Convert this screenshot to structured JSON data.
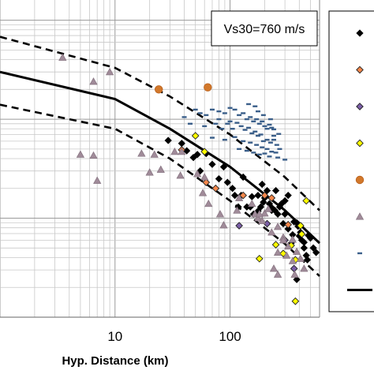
{
  "chart_data": {
    "type": "scatter",
    "title": "",
    "xlabel": "Hyp. Distance (km)",
    "ylabel": "",
    "x_scale": "log",
    "y_scale": "log",
    "xlim": [
      1,
      600
    ],
    "ylim": [
      0.001,
      1.6
    ],
    "grid": true,
    "x_tick_labels": [
      {
        "value": 10,
        "label": "10"
      },
      {
        "value": 100,
        "label": "100"
      }
    ],
    "annotations": [
      {
        "text": "Vs30=760 m/s",
        "position": "top-right"
      }
    ],
    "legend": {
      "position": "right",
      "entries": [
        {
          "marker": "diamond",
          "color": "#000000",
          "label": ""
        },
        {
          "marker": "diamond",
          "color": "#f4874b",
          "label": ""
        },
        {
          "marker": "diamond",
          "color": "#7b5ea7",
          "label": ""
        },
        {
          "marker": "diamond",
          "color": "#ffff00",
          "label": ""
        },
        {
          "marker": "circle",
          "color": "#d2782b",
          "label": ""
        },
        {
          "marker": "triangle",
          "color": "#a08b99",
          "label": ""
        },
        {
          "marker": "dash",
          "color": "#3b5f8a",
          "label": ""
        },
        {
          "marker": "line",
          "color": "#000000",
          "label": ""
        }
      ]
    },
    "lines": [
      {
        "style": "solid",
        "color": "#000000",
        "x": [
          1,
          10,
          30,
          100,
          300,
          600
        ],
        "y": [
          0.3,
          0.16,
          0.08,
          0.033,
          0.012,
          0.0056
        ]
      },
      {
        "style": "dashed",
        "color": "#000000",
        "x": [
          1,
          10,
          30,
          100,
          300,
          600
        ],
        "y": [
          0.68,
          0.33,
          0.17,
          0.07,
          0.026,
          0.012
        ]
      },
      {
        "style": "dashed",
        "color": "#000000",
        "x": [
          1,
          10,
          30,
          100,
          300,
          600
        ],
        "y": [
          0.14,
          0.08,
          0.04,
          0.015,
          0.0055,
          0.0026
        ]
      }
    ],
    "series": [
      {
        "marker": "diamond",
        "color": "#000000",
        "points": [
          [
            29,
            0.061
          ],
          [
            38,
            0.057
          ],
          [
            42,
            0.048
          ],
          [
            48,
            0.041
          ],
          [
            52,
            0.044
          ],
          [
            55,
            0.03
          ],
          [
            62,
            0.045
          ],
          [
            70,
            0.035
          ],
          [
            80,
            0.025
          ],
          [
            88,
            0.033
          ],
          [
            95,
            0.023
          ],
          [
            105,
            0.02
          ],
          [
            110,
            0.017
          ],
          [
            118,
            0.013
          ],
          [
            125,
            0.017
          ],
          [
            130,
            0.026
          ],
          [
            140,
            0.013
          ],
          [
            150,
            0.013
          ],
          [
            160,
            0.011
          ],
          [
            175,
            0.017
          ],
          [
            185,
            0.013
          ],
          [
            190,
            0.022
          ],
          [
            200,
            0.016
          ],
          [
            210,
            0.019
          ],
          [
            220,
            0.014
          ],
          [
            230,
            0.012
          ],
          [
            245,
            0.012
          ],
          [
            260,
            0.011
          ],
          [
            280,
            0.014
          ],
          [
            300,
            0.011
          ],
          [
            320,
            0.0078
          ],
          [
            350,
            0.0068
          ],
          [
            380,
            0.009
          ],
          [
            400,
            0.0066
          ],
          [
            420,
            0.006
          ],
          [
            440,
            0.005
          ],
          [
            460,
            0.0042
          ],
          [
            480,
            0.0067
          ],
          [
            500,
            0.0063
          ],
          [
            290,
            0.0088
          ],
          [
            360,
            0.0092
          ],
          [
            410,
            0.0072
          ],
          [
            470,
            0.0038
          ],
          [
            530,
            0.005
          ],
          [
            560,
            0.0045
          ],
          [
            340,
            0.0056
          ],
          [
            390,
            0.0083
          ],
          [
            270,
            0.013
          ],
          [
            230,
            0.0128
          ],
          [
            195,
            0.0145
          ],
          [
            175,
            0.0118
          ],
          [
            155,
            0.0165
          ],
          [
            380,
            0.0024
          ],
          [
            250,
            0.019
          ],
          [
            300,
            0.015
          ],
          [
            320,
            0.017
          ],
          [
            440,
            0.0057
          ]
        ]
      },
      {
        "marker": "diamond",
        "color": "#f4874b",
        "points": [
          [
            38,
            0.049
          ],
          [
            62,
            0.023
          ],
          [
            75,
            0.02
          ],
          [
            130,
            0.017
          ],
          [
            200,
            0.017
          ],
          [
            230,
            0.016
          ],
          [
            320,
            0.0086
          ]
        ]
      },
      {
        "marker": "diamond",
        "color": "#7b5ea7",
        "points": [
          [
            120,
            0.0084
          ],
          [
            210,
            0.0088
          ],
          [
            300,
            0.006
          ],
          [
            360,
            0.0031
          ]
        ]
      },
      {
        "marker": "diamond",
        "color": "#ffff00",
        "points": [
          [
            50,
            0.068
          ],
          [
            60,
            0.047
          ],
          [
            290,
            0.0044
          ],
          [
            250,
            0.0054
          ],
          [
            340,
            0.0053
          ],
          [
            370,
            0.0038
          ],
          [
            410,
            0.0084
          ],
          [
            420,
            0.0069
          ],
          [
            460,
            0.015
          ],
          [
            370,
            0.00145
          ],
          [
            180,
            0.0039
          ]
        ]
      },
      {
        "marker": "circle",
        "color": "#d2782b",
        "points": [
          [
            24,
            0.2
          ],
          [
            64,
            0.21
          ]
        ]
      },
      {
        "marker": "triangle",
        "color": "#a08b99",
        "points": [
          [
            3.5,
            0.42
          ],
          [
            6.5,
            0.24
          ],
          [
            9,
            0.3
          ],
          [
            5,
            0.044
          ],
          [
            6.5,
            0.043
          ],
          [
            7,
            0.024
          ],
          [
            17,
            0.045
          ],
          [
            20,
            0.029
          ],
          [
            22,
            0.044
          ],
          [
            25,
            0.031
          ],
          [
            33,
            0.047
          ],
          [
            37,
            0.027
          ],
          [
            38,
            0.047
          ],
          [
            52,
            0.028
          ],
          [
            58,
            0.018
          ],
          [
            65,
            0.014
          ],
          [
            82,
            0.011
          ],
          [
            88,
            0.0085
          ],
          [
            115,
            0.012
          ],
          [
            120,
            0.016
          ],
          [
            155,
            0.014
          ],
          [
            165,
            0.011
          ],
          [
            175,
            0.01
          ],
          [
            190,
            0.0094
          ],
          [
            200,
            0.0112
          ],
          [
            215,
            0.0124
          ],
          [
            230,
            0.0072
          ],
          [
            260,
            0.0082
          ],
          [
            290,
            0.0064
          ],
          [
            320,
            0.0052
          ],
          [
            350,
            0.0061
          ],
          [
            380,
            0.0046
          ],
          [
            410,
            0.0039
          ],
          [
            440,
            0.0031
          ],
          [
            240,
            0.0031
          ],
          [
            260,
            0.0027
          ],
          [
            310,
            0.0042
          ],
          [
            350,
            0.0037
          ],
          [
            365,
            0.0027
          ],
          [
            290,
            0.006
          ],
          [
            260,
            0.0045
          ],
          [
            180,
            0.011
          ],
          [
            60,
            0.026
          ]
        ]
      },
      {
        "marker": "dash",
        "color": "#3b5f8a",
        "points": [
          [
            50,
            0.125
          ],
          [
            55,
            0.115
          ],
          [
            62,
            0.11
          ],
          [
            70,
            0.125
          ],
          [
            80,
            0.12
          ],
          [
            90,
            0.115
          ],
          [
            100,
            0.13
          ],
          [
            110,
            0.125
          ],
          [
            120,
            0.11
          ],
          [
            130,
            0.115
          ],
          [
            140,
            0.1
          ],
          [
            150,
            0.105
          ],
          [
            160,
            0.095
          ],
          [
            170,
            0.1
          ],
          [
            180,
            0.09
          ],
          [
            190,
            0.095
          ],
          [
            200,
            0.085
          ],
          [
            210,
            0.08
          ],
          [
            220,
            0.088
          ],
          [
            230,
            0.082
          ],
          [
            240,
            0.079
          ],
          [
            45,
            0.09
          ],
          [
            60,
            0.085
          ],
          [
            75,
            0.09
          ],
          [
            85,
            0.08
          ],
          [
            95,
            0.09
          ],
          [
            105,
            0.08
          ],
          [
            115,
            0.092
          ],
          [
            125,
            0.085
          ],
          [
            135,
            0.078
          ],
          [
            145,
            0.082
          ],
          [
            155,
            0.072
          ],
          [
            165,
            0.075
          ],
          [
            175,
            0.068
          ],
          [
            185,
            0.07
          ],
          [
            195,
            0.06
          ],
          [
            210,
            0.062
          ],
          [
            225,
            0.058
          ],
          [
            240,
            0.062
          ],
          [
            255,
            0.055
          ],
          [
            270,
            0.05
          ],
          [
            70,
            0.065
          ],
          [
            90,
            0.062
          ],
          [
            110,
            0.066
          ],
          [
            130,
            0.06
          ],
          [
            150,
            0.058
          ],
          [
            170,
            0.055
          ],
          [
            190,
            0.052
          ],
          [
            210,
            0.05
          ],
          [
            230,
            0.047
          ],
          [
            250,
            0.046
          ],
          [
            120,
            0.05
          ],
          [
            140,
            0.048
          ],
          [
            160,
            0.046
          ],
          [
            180,
            0.044
          ],
          [
            200,
            0.045
          ],
          [
            220,
            0.042
          ],
          [
            260,
            0.041
          ],
          [
            300,
            0.039
          ],
          [
            165,
            0.135
          ],
          [
            145,
            0.142
          ],
          [
            80,
            0.1
          ],
          [
            100,
            0.095
          ],
          [
            40,
            0.105
          ],
          [
            195,
            0.11
          ],
          [
            175,
            0.12
          ],
          [
            225,
            0.1
          ],
          [
            265,
            0.071
          ],
          [
            240,
            0.068
          ]
        ]
      }
    ]
  }
}
